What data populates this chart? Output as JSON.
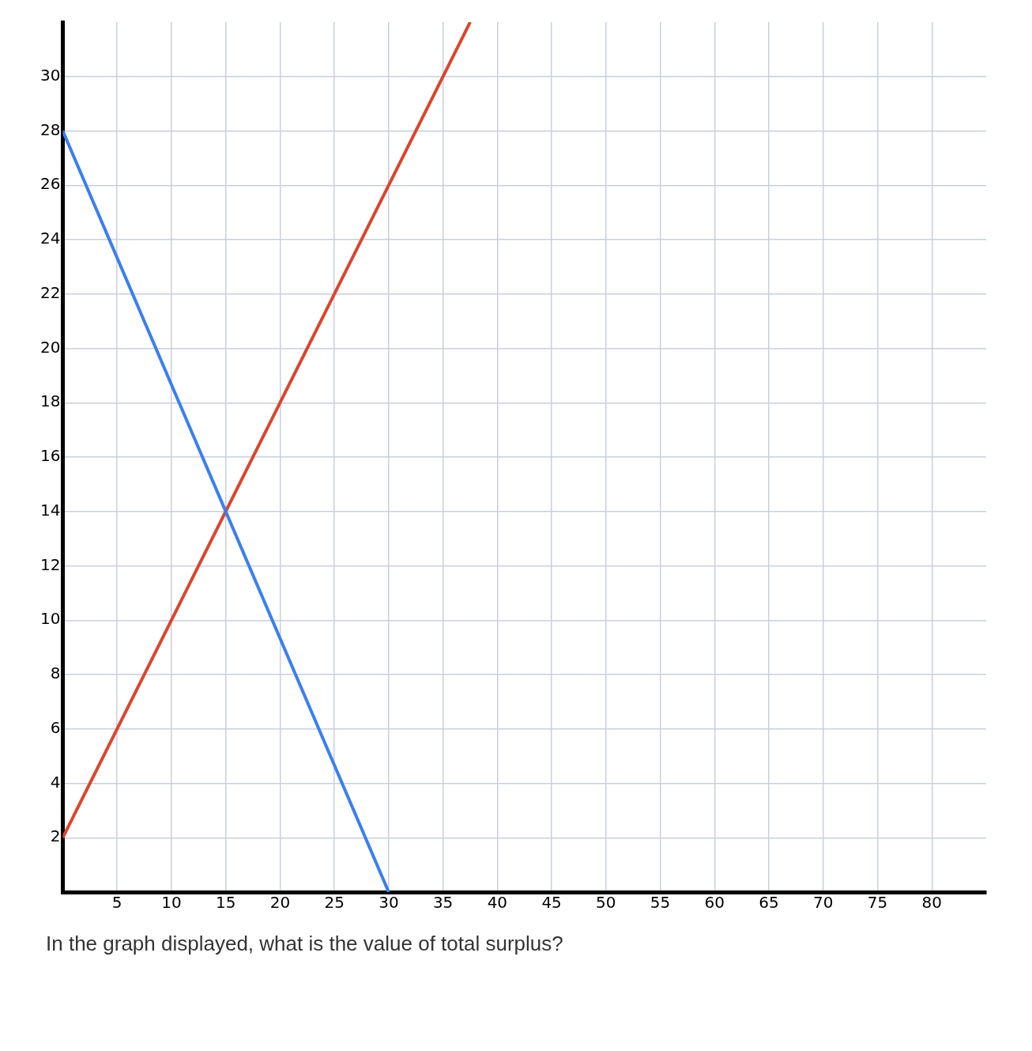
{
  "chart_data": {
    "type": "line",
    "x": [
      0,
      30
    ],
    "series": [
      {
        "color": "#3b7ff0",
        "values": [
          28,
          0
        ]
      },
      {
        "color": "#d9472f",
        "x": [
          0,
          37.5
        ],
        "values": [
          2,
          32
        ]
      }
    ],
    "xlim": [
      0,
      85
    ],
    "ylim": [
      0,
      32
    ],
    "xticks": [
      {
        "value": 0,
        "label": null
      },
      5,
      10,
      15,
      20,
      25,
      30,
      35,
      40,
      45,
      50,
      55,
      60,
      65,
      70,
      75,
      80
    ],
    "yticks": [
      {
        "value": 0,
        "label": null
      },
      2,
      4,
      6,
      8,
      10,
      12,
      14,
      16,
      18,
      20,
      22,
      24,
      26,
      28,
      30
    ],
    "grid": true,
    "legend": false,
    "marker": "none",
    "line_style": "solid",
    "annotations": [
      "In the graph displayed, what is the value of total surplus?"
    ]
  }
}
